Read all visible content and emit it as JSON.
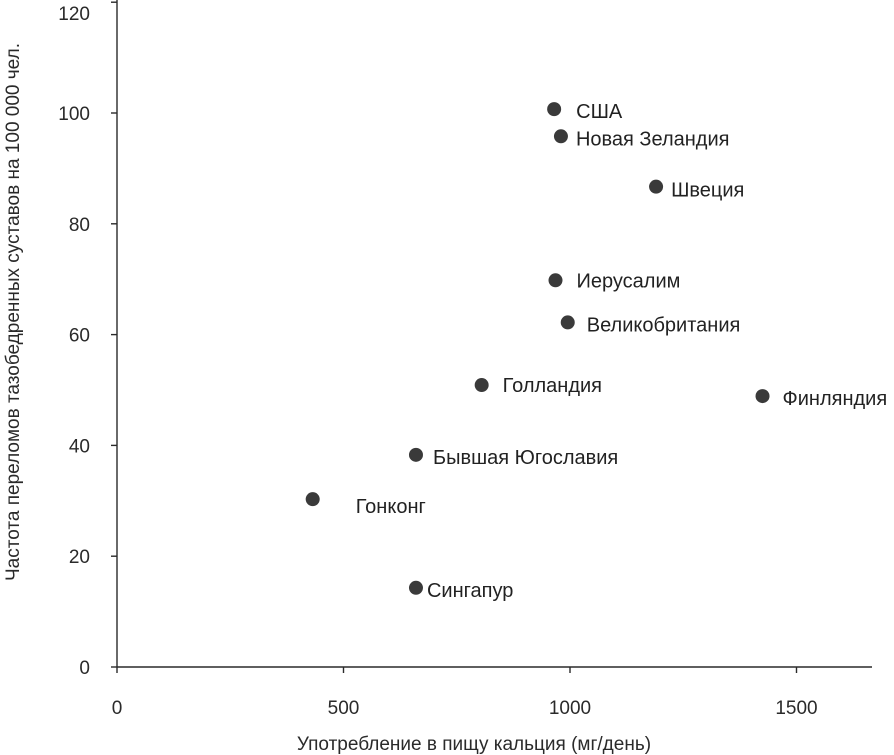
{
  "chart_data": {
    "type": "scatter",
    "title": "",
    "xlabel": "Употребление в пищу кальция (мг/день)",
    "ylabel": "Частота переломов тазобедренных суставов на 100 000 чел.",
    "xlim": [
      0,
      1660
    ],
    "ylim": [
      0,
      120
    ],
    "xticks": [
      0,
      500,
      1000,
      1500
    ],
    "yticks": [
      0,
      20,
      40,
      60,
      80,
      100,
      120
    ],
    "grid": false,
    "marker_color": "#3a3a3a",
    "points": [
      {
        "label": "США",
        "x": 965,
        "y": 100.7
      },
      {
        "label": "Новая Зеландия",
        "x": 980,
        "y": 95.8
      },
      {
        "label": "Швеция",
        "x": 1190,
        "y": 86.7
      },
      {
        "label": "Иерусалим",
        "x": 968,
        "y": 69.8
      },
      {
        "label": "Великобритания",
        "x": 995,
        "y": 62.2
      },
      {
        "label": "Голландия",
        "x": 805,
        "y": 50.9
      },
      {
        "label": "Финляндия",
        "x": 1425,
        "y": 48.9
      },
      {
        "label": "Бывшая Югославия",
        "x": 660,
        "y": 38.3
      },
      {
        "label": "Гонконг",
        "x": 432,
        "y": 30.3
      },
      {
        "label": "Сингапур",
        "x": 660,
        "y": 14.3
      }
    ]
  }
}
